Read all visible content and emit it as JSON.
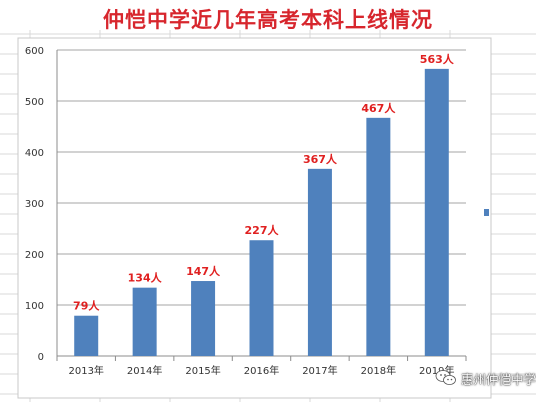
{
  "title": "仲恺中学近几年高考本科上线情况",
  "watermark": "惠州仲恺中学",
  "chart_data": {
    "type": "bar",
    "title": "仲恺中学近几年高考本科上线情况",
    "categories": [
      "2013年",
      "2014年",
      "2015年",
      "2016年",
      "2017年",
      "2018年",
      "2019年"
    ],
    "values": [
      79,
      134,
      147,
      227,
      367,
      467,
      563
    ],
    "data_labels": [
      "79人",
      "134人",
      "147人",
      "227人",
      "367人",
      "467人",
      "563人"
    ],
    "ylim": [
      0,
      600
    ],
    "yticks": [
      0,
      100,
      200,
      300,
      400,
      500,
      600
    ],
    "grid": true,
    "legend": "right",
    "bar_color": "#4f81bd",
    "label_color": "#e02020"
  }
}
